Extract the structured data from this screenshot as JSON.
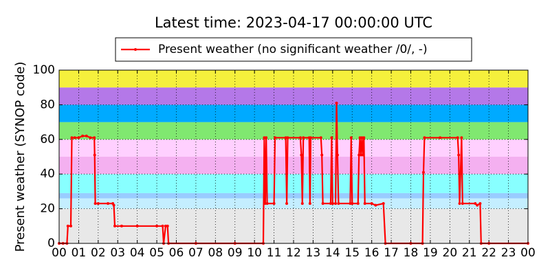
{
  "chart_data": {
    "type": "line",
    "title": "Latest time: 2023-04-17 00:00:00 UTC",
    "y_label": "Present weather (SYNOP code)",
    "series": [
      {
        "name": "Present weather (no significant weather /0/, -)",
        "color": "#ff0000",
        "x": [
          0,
          0.2,
          0.4,
          0.45,
          0.6,
          0.65,
          0.8,
          1.0,
          1.2,
          1.4,
          1.6,
          1.8,
          1.82,
          1.85,
          2.0,
          2.5,
          2.75,
          2.8,
          2.85,
          3.2,
          4.0,
          5.0,
          5.3,
          5.35,
          5.45,
          5.55,
          5.6,
          7,
          9,
          10.45,
          10.5,
          10.55,
          10.6,
          10.65,
          11.0,
          11.05,
          11.6,
          11.65,
          11.7,
          12.35,
          12.4,
          12.45,
          12.5,
          12.8,
          12.84,
          12.88,
          13.4,
          13.45,
          13.5,
          13.9,
          13.95,
          14.0,
          14.15,
          14.2,
          14.25,
          14.3,
          14.9,
          14.95,
          15.0,
          15.3,
          15.35,
          15.4,
          15.45,
          15.5,
          15.55,
          15.6,
          15.65,
          16.0,
          16.2,
          16.6,
          16.7,
          18,
          18.6,
          18.65,
          18.7,
          19.5,
          20.4,
          20.45,
          20.5,
          20.6,
          20.65,
          21.3,
          21.4,
          21.55,
          21.6,
          22,
          24
        ],
        "values": [
          0,
          0,
          0,
          10,
          10,
          61,
          61,
          61,
          62,
          62,
          61,
          61,
          51,
          23,
          23,
          23,
          23,
          22,
          10,
          10,
          10,
          10,
          10,
          0,
          10,
          10,
          0,
          0,
          0,
          0,
          61,
          23,
          61,
          23,
          23,
          61,
          61,
          23,
          61,
          61,
          51,
          23,
          61,
          61,
          23,
          61,
          61,
          51,
          23,
          23,
          61,
          23,
          23,
          81,
          51,
          23,
          23,
          61,
          23,
          23,
          51,
          61,
          51,
          61,
          51,
          61,
          23,
          23,
          22,
          23,
          0,
          0,
          0,
          41,
          61,
          61,
          61,
          51,
          23,
          61,
          23,
          23,
          22,
          23,
          0,
          0,
          0
        ]
      }
    ],
    "xlim": [
      0,
      24
    ],
    "xticks": [
      {
        "value": 0,
        "label": "00"
      },
      {
        "value": 1,
        "label": "01"
      },
      {
        "value": 2,
        "label": "02"
      },
      {
        "value": 3,
        "label": "03"
      },
      {
        "value": 4,
        "label": "04"
      },
      {
        "value": 5,
        "label": "05"
      },
      {
        "value": 6,
        "label": "06"
      },
      {
        "value": 7,
        "label": "07"
      },
      {
        "value": 8,
        "label": "08"
      },
      {
        "value": 9,
        "label": "09"
      },
      {
        "value": 10,
        "label": "10"
      },
      {
        "value": 11,
        "label": "11"
      },
      {
        "value": 12,
        "label": "12"
      },
      {
        "value": 13,
        "label": "13"
      },
      {
        "value": 14,
        "label": "14"
      },
      {
        "value": 15,
        "label": "15"
      },
      {
        "value": 16,
        "label": "16"
      },
      {
        "value": 17,
        "label": "17"
      },
      {
        "value": 18,
        "label": "18"
      },
      {
        "value": 19,
        "label": "19"
      },
      {
        "value": 20,
        "label": "20"
      },
      {
        "value": 21,
        "label": "21"
      },
      {
        "value": 22,
        "label": "22"
      },
      {
        "value": 23,
        "label": "23"
      },
      {
        "value": 24,
        "label": "00"
      }
    ],
    "ylim": [
      0,
      100
    ],
    "yticks": [
      0,
      20,
      40,
      60,
      80,
      100
    ],
    "grid": true,
    "legend": "top",
    "bands": [
      {
        "from": 0,
        "to": 20,
        "color": "#e8e8e8"
      },
      {
        "from": 20,
        "to": 26,
        "color": "#c4eeff"
      },
      {
        "from": 26,
        "to": 29,
        "color": "#99ccff"
      },
      {
        "from": 29,
        "to": 40,
        "color": "#88ffff"
      },
      {
        "from": 40,
        "to": 50,
        "color": "#f4b0f0"
      },
      {
        "from": 50,
        "to": 60,
        "color": "#ffd0ff"
      },
      {
        "from": 60,
        "to": 70,
        "color": "#80e870"
      },
      {
        "from": 70,
        "to": 80,
        "color": "#00aaff"
      },
      {
        "from": 80,
        "to": 90,
        "color": "#b478e8"
      },
      {
        "from": 90,
        "to": 100,
        "color": "#f5f03c"
      }
    ]
  }
}
